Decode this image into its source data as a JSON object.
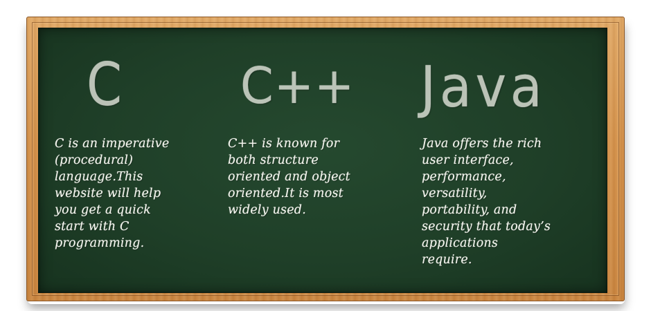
{
  "columns": [
    {
      "title": "C",
      "lines": [
        "C is an imperative",
        "(procedural)",
        "language.This",
        "website will help",
        "you get a quick",
        "start with C",
        "programming."
      ]
    },
    {
      "title": "C++",
      "lines": [
        "C++ is known for",
        "both structure",
        "oriented and object",
        "oriented.It is most",
        "widely used."
      ]
    },
    {
      "title": "Java",
      "lines": [
        "Java offers the rich",
        "user interface,",
        "performance,",
        "versatility,",
        "portability, and",
        "security that today’s",
        "applications",
        "require."
      ]
    }
  ],
  "colors": {
    "board": "#1f3f28",
    "frame": "#d4924c",
    "chalk": "#f4f6ee",
    "chalk_title": "#c9cfc4"
  }
}
